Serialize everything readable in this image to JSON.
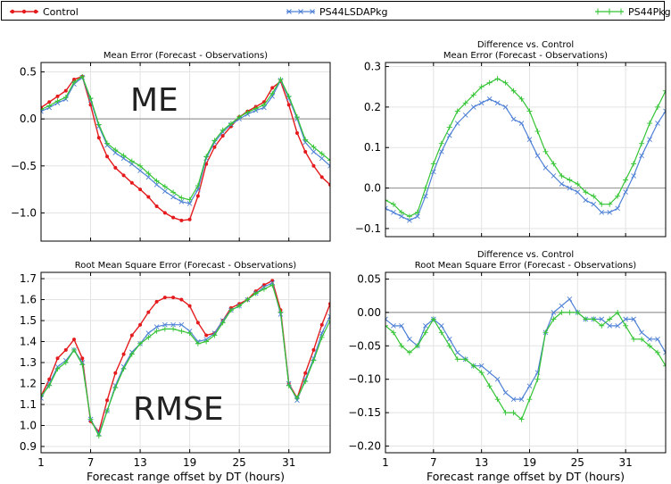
{
  "legend": {
    "items": [
      {
        "name": "Control",
        "color": "#e41a1c",
        "marker": "dot"
      },
      {
        "name": "PS44LSDAPkg",
        "color": "#4f81d6",
        "marker": "x"
      },
      {
        "name": "PS44Pkg",
        "color": "#33c433",
        "marker": "plus"
      }
    ]
  },
  "chart_data": [
    {
      "id": "me",
      "type": "line",
      "title": "Mean Error (Forecast - Observations)",
      "annotation": "ME",
      "xlabel": "",
      "ylabel": "",
      "xlim": [
        1,
        36
      ],
      "ylim": [
        -1.3,
        0.6
      ],
      "x_ticks": [
        1,
        7,
        13,
        19,
        25,
        31
      ],
      "y_ticks": [
        0.5,
        0.0,
        -0.5,
        -1.0
      ],
      "y_tick_labels": [
        "0.5",
        "0.0",
        "−0.5",
        "−1.0"
      ],
      "zero_line": true,
      "grid": true,
      "x": [
        1,
        2,
        3,
        4,
        5,
        6,
        7,
        8,
        9,
        10,
        11,
        12,
        13,
        14,
        15,
        16,
        17,
        18,
        19,
        20,
        21,
        22,
        23,
        24,
        25,
        26,
        27,
        28,
        29,
        30,
        31,
        32,
        33,
        34,
        35,
        36
      ],
      "series": [
        {
          "name": "Control",
          "values": [
            0.12,
            0.18,
            0.24,
            0.3,
            0.42,
            0.45,
            0.15,
            -0.2,
            -0.4,
            -0.52,
            -0.6,
            -0.68,
            -0.75,
            -0.83,
            -0.93,
            -1.0,
            -1.05,
            -1.08,
            -1.07,
            -0.82,
            -0.48,
            -0.3,
            -0.18,
            -0.08,
            0.02,
            0.08,
            0.13,
            0.18,
            0.33,
            0.4,
            0.15,
            -0.15,
            -0.35,
            -0.5,
            -0.62,
            -0.7
          ]
        },
        {
          "name": "PS44LSDAPkg",
          "values": [
            0.08,
            0.12,
            0.17,
            0.21,
            0.37,
            0.44,
            0.2,
            -0.08,
            -0.28,
            -0.36,
            -0.42,
            -0.48,
            -0.55,
            -0.62,
            -0.7,
            -0.77,
            -0.83,
            -0.88,
            -0.9,
            -0.75,
            -0.42,
            -0.25,
            -0.14,
            -0.06,
            0.0,
            0.05,
            0.09,
            0.12,
            0.24,
            0.41,
            0.22,
            0.0,
            -0.25,
            -0.35,
            -0.42,
            -0.5
          ]
        },
        {
          "name": "PS44Pkg",
          "values": [
            0.1,
            0.14,
            0.19,
            0.23,
            0.39,
            0.45,
            0.22,
            -0.06,
            -0.26,
            -0.33,
            -0.39,
            -0.45,
            -0.5,
            -0.58,
            -0.66,
            -0.72,
            -0.78,
            -0.84,
            -0.86,
            -0.71,
            -0.4,
            -0.23,
            -0.12,
            -0.05,
            0.02,
            0.07,
            0.11,
            0.15,
            0.27,
            0.42,
            0.24,
            0.02,
            -0.22,
            -0.3,
            -0.37,
            -0.44
          ]
        }
      ]
    },
    {
      "id": "me_diff",
      "type": "line",
      "title": "Difference vs. Control",
      "subtitle": "Mean Error (Forecast - Observations)",
      "xlabel": "",
      "ylabel": "",
      "xlim": [
        1,
        36
      ],
      "ylim": [
        -0.12,
        0.31
      ],
      "x_ticks": [
        1,
        7,
        13,
        19,
        25,
        31
      ],
      "y_ticks": [
        0.3,
        0.2,
        0.1,
        0.0,
        -0.1
      ],
      "y_tick_labels": [
        "0.3",
        "0.2",
        "0.1",
        "0.0",
        "−0.1"
      ],
      "zero_line": true,
      "grid": true,
      "x": [
        1,
        2,
        3,
        4,
        5,
        6,
        7,
        8,
        9,
        10,
        11,
        12,
        13,
        14,
        15,
        16,
        17,
        18,
        19,
        20,
        21,
        22,
        23,
        24,
        25,
        26,
        27,
        28,
        29,
        30,
        31,
        32,
        33,
        34,
        35,
        36
      ],
      "series": [
        {
          "name": "PS44LSDAPkg",
          "values": [
            -0.05,
            -0.06,
            -0.07,
            -0.08,
            -0.07,
            -0.02,
            0.04,
            0.09,
            0.13,
            0.16,
            0.18,
            0.2,
            0.21,
            0.22,
            0.21,
            0.2,
            0.17,
            0.16,
            0.12,
            0.08,
            0.05,
            0.03,
            0.01,
            0.0,
            -0.01,
            -0.03,
            -0.04,
            -0.06,
            -0.06,
            -0.05,
            -0.01,
            0.03,
            0.08,
            0.12,
            0.16,
            0.19
          ]
        },
        {
          "name": "PS44Pkg",
          "values": [
            -0.03,
            -0.04,
            -0.06,
            -0.07,
            -0.06,
            0.0,
            0.06,
            0.11,
            0.15,
            0.19,
            0.21,
            0.23,
            0.25,
            0.26,
            0.27,
            0.26,
            0.24,
            0.22,
            0.19,
            0.14,
            0.09,
            0.06,
            0.03,
            0.02,
            0.01,
            -0.01,
            -0.02,
            -0.04,
            -0.04,
            -0.02,
            0.02,
            0.06,
            0.11,
            0.16,
            0.2,
            0.24
          ]
        }
      ]
    },
    {
      "id": "rmse",
      "type": "line",
      "title": "Root Mean Square Error (Forecast - Observations)",
      "annotation": "RMSE",
      "xlabel": "Forecast range offset by DT (hours)",
      "ylabel": "",
      "xlim": [
        1,
        36
      ],
      "ylim": [
        0.87,
        1.73
      ],
      "x_ticks": [
        1,
        7,
        13,
        19,
        25,
        31
      ],
      "y_ticks": [
        1.7,
        1.6,
        1.5,
        1.4,
        1.3,
        1.2,
        1.1,
        1.0,
        0.9
      ],
      "y_tick_labels": [
        "1.7",
        "1.6",
        "1.5",
        "1.4",
        "1.3",
        "1.2",
        "1.1",
        "1.0",
        "0.9"
      ],
      "zero_line": false,
      "grid": true,
      "x": [
        1,
        2,
        3,
        4,
        5,
        6,
        7,
        8,
        9,
        10,
        11,
        12,
        13,
        14,
        15,
        16,
        17,
        18,
        19,
        20,
        21,
        22,
        23,
        24,
        25,
        26,
        27,
        28,
        29,
        30,
        31,
        32,
        33,
        34,
        35,
        36
      ],
      "series": [
        {
          "name": "Control",
          "values": [
            1.14,
            1.22,
            1.32,
            1.36,
            1.41,
            1.32,
            1.02,
            0.97,
            1.12,
            1.25,
            1.34,
            1.43,
            1.48,
            1.54,
            1.59,
            1.61,
            1.61,
            1.6,
            1.57,
            1.49,
            1.43,
            1.44,
            1.5,
            1.56,
            1.58,
            1.6,
            1.64,
            1.67,
            1.69,
            1.55,
            1.2,
            1.13,
            1.25,
            1.36,
            1.48,
            1.58
          ]
        },
        {
          "name": "PS44LSDAPkg",
          "values": [
            1.13,
            1.2,
            1.28,
            1.31,
            1.36,
            1.3,
            1.03,
            0.96,
            1.07,
            1.19,
            1.28,
            1.35,
            1.39,
            1.44,
            1.47,
            1.48,
            1.48,
            1.48,
            1.45,
            1.4,
            1.41,
            1.44,
            1.5,
            1.55,
            1.57,
            1.6,
            1.63,
            1.66,
            1.68,
            1.53,
            1.2,
            1.12,
            1.22,
            1.32,
            1.44,
            1.52
          ]
        },
        {
          "name": "PS44Pkg",
          "values": [
            1.14,
            1.19,
            1.27,
            1.3,
            1.36,
            1.29,
            1.03,
            0.95,
            1.07,
            1.18,
            1.27,
            1.34,
            1.39,
            1.42,
            1.45,
            1.46,
            1.46,
            1.45,
            1.44,
            1.39,
            1.4,
            1.43,
            1.49,
            1.55,
            1.57,
            1.6,
            1.63,
            1.65,
            1.67,
            1.54,
            1.19,
            1.13,
            1.21,
            1.31,
            1.42,
            1.5
          ]
        }
      ]
    },
    {
      "id": "rmse_diff",
      "type": "line",
      "title": "Difference vs. Control",
      "subtitle": "Root Mean Square Error (Forecast - Observations)",
      "xlabel": "Forecast range offset by DT (hours)",
      "ylabel": "",
      "xlim": [
        1,
        36
      ],
      "ylim": [
        -0.21,
        0.06
      ],
      "x_ticks": [
        1,
        7,
        13,
        19,
        25,
        31
      ],
      "y_ticks": [
        0.05,
        0.0,
        -0.05,
        -0.1,
        -0.15,
        -0.2
      ],
      "y_tick_labels": [
        "0.05",
        "0.00",
        "−0.05",
        "−0.10",
        "−0.15",
        "−0.20"
      ],
      "zero_line": true,
      "grid": true,
      "x": [
        1,
        2,
        3,
        4,
        5,
        6,
        7,
        8,
        9,
        10,
        11,
        12,
        13,
        14,
        15,
        16,
        17,
        18,
        19,
        20,
        21,
        22,
        23,
        24,
        25,
        26,
        27,
        28,
        29,
        30,
        31,
        32,
        33,
        34,
        35,
        36
      ],
      "series": [
        {
          "name": "PS44LSDAPkg",
          "values": [
            -0.01,
            -0.02,
            -0.02,
            -0.04,
            -0.05,
            -0.02,
            -0.01,
            -0.02,
            -0.04,
            -0.06,
            -0.07,
            -0.08,
            -0.08,
            -0.09,
            -0.1,
            -0.12,
            -0.13,
            -0.13,
            -0.11,
            -0.09,
            -0.03,
            0.0,
            0.01,
            0.02,
            0.0,
            -0.01,
            -0.01,
            -0.01,
            -0.02,
            -0.02,
            -0.01,
            -0.01,
            -0.03,
            -0.04,
            -0.04,
            -0.06
          ]
        },
        {
          "name": "PS44Pkg",
          "values": [
            -0.02,
            -0.03,
            -0.05,
            -0.06,
            -0.05,
            -0.03,
            -0.01,
            -0.03,
            -0.05,
            -0.07,
            -0.07,
            -0.08,
            -0.09,
            -0.11,
            -0.13,
            -0.15,
            -0.15,
            -0.16,
            -0.13,
            -0.1,
            -0.03,
            -0.01,
            0.0,
            0.0,
            0.0,
            -0.01,
            -0.01,
            -0.02,
            -0.01,
            0.0,
            -0.02,
            -0.04,
            -0.04,
            -0.05,
            -0.06,
            -0.08
          ]
        }
      ]
    }
  ]
}
